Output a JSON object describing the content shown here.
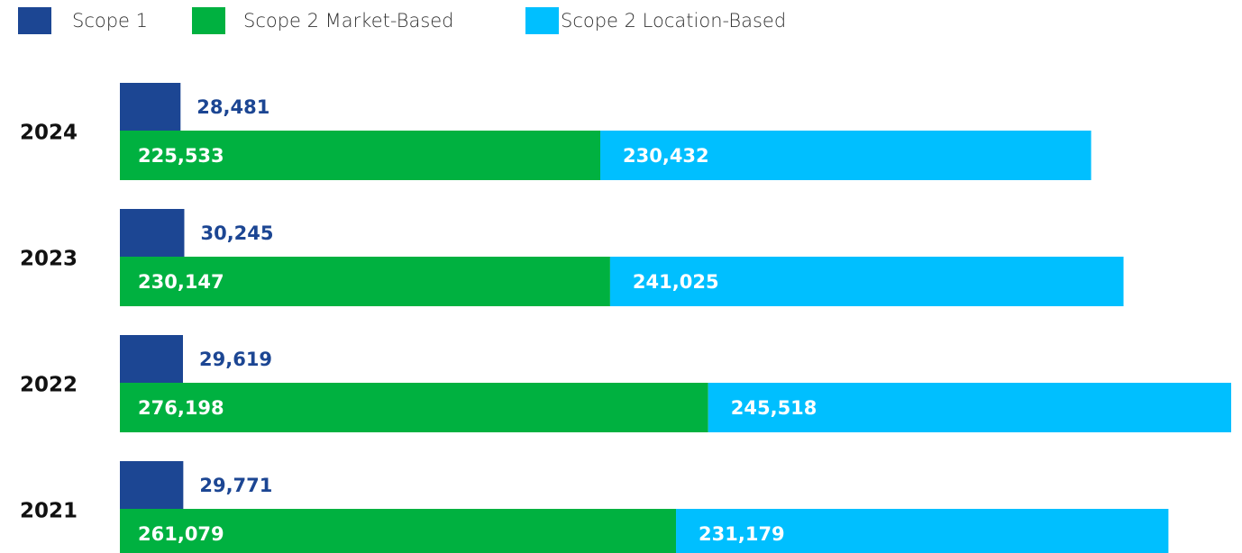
{
  "chart_data": {
    "type": "bar",
    "categories": [
      "2024",
      "2023",
      "2022",
      "2021"
    ],
    "series": [
      {
        "name": "Scope 1",
        "color": "#1c4693",
        "values": [
          28481,
          30245,
          29619,
          29771
        ],
        "value_labels": [
          "28,481",
          "30,245",
          "29,619",
          "29,771"
        ]
      },
      {
        "name": "Scope 2 Market-Based",
        "color": "#00b140",
        "values": [
          225533,
          230147,
          276198,
          261079
        ],
        "value_labels": [
          "225,533",
          "230,147",
          "276,198",
          "261,079"
        ]
      },
      {
        "name": "Scope 2 Location-Based",
        "color": "#00bfff",
        "values": [
          230432,
          241025,
          245518,
          231179
        ],
        "value_labels": [
          "230,432",
          "241,025",
          "245,518",
          "231,179"
        ]
      }
    ]
  }
}
